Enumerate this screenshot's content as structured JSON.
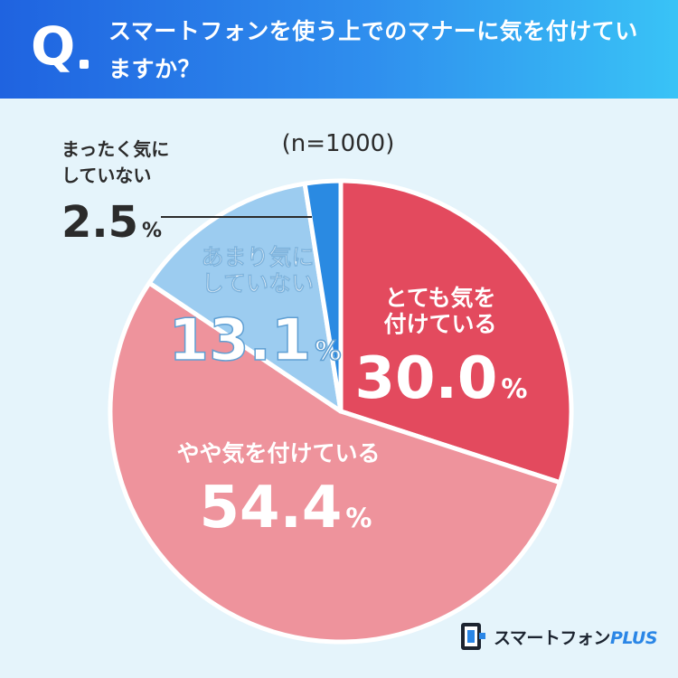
{
  "header": {
    "q_mark": "Q",
    "question": "スマートフォンを使う上でのマナーに気を付けていますか？"
  },
  "chart_data": {
    "type": "pie",
    "sample_size": "(n=1000)",
    "unit": "%",
    "slices": [
      {
        "label_lines": [
          "とても気を",
          "付けている"
        ],
        "value": 30.0,
        "value_text": "30.0",
        "color": "#e34a5e"
      },
      {
        "label_lines": [
          "やや気を付けている"
        ],
        "value": 54.4,
        "value_text": "54.4",
        "color": "#ee939c"
      },
      {
        "label_lines": [
          "あまり気に",
          "していない"
        ],
        "value": 13.1,
        "value_text": "13.1",
        "color": "#9cccf0"
      },
      {
        "label_lines": [
          "まったく気に",
          "していない"
        ],
        "value": 2.5,
        "value_text": "2.5",
        "color": "#2a8ae2"
      }
    ]
  },
  "logo": {
    "name": "スマートフォン",
    "plus": "PLUS"
  },
  "colors": {
    "header_start": "#1f63e0",
    "header_end": "#39c3f6",
    "background": "#e5f4fb",
    "outside_label_text": "#2b2b2b"
  }
}
